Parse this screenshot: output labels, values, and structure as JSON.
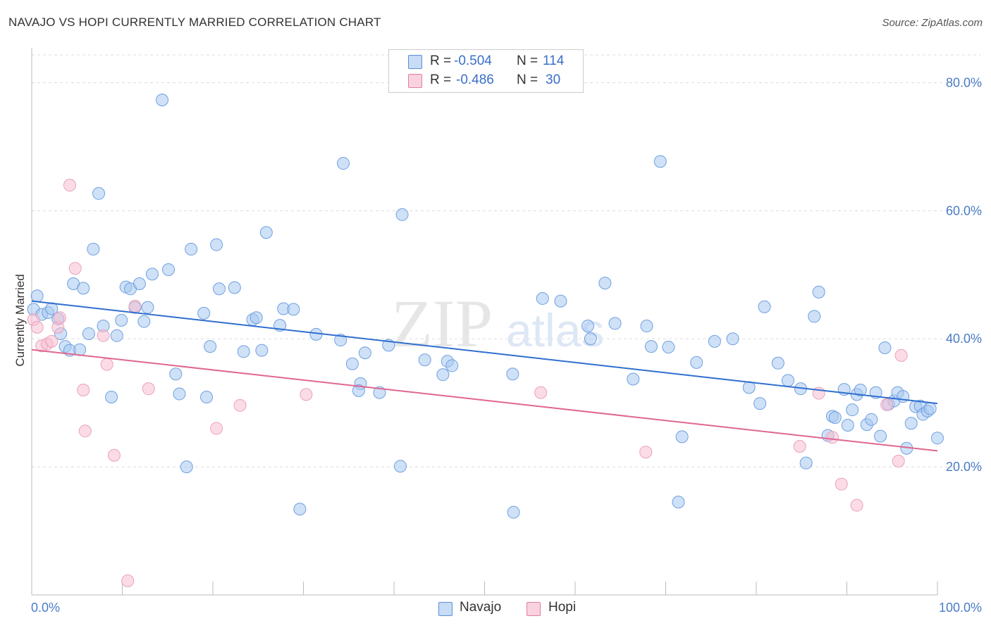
{
  "title": "NAVAJO VS HOPI CURRENTLY MARRIED CORRELATION CHART",
  "source": "Source: ZipAtlas.com",
  "watermark": {
    "zip": "ZIP",
    "atlas": "atlas"
  },
  "legend": {
    "rows": [
      {
        "r_label": "R =",
        "r_value": "-0.504",
        "n_label": "N =",
        "n_value": "114",
        "color": "#a8c8f0",
        "border": "#5b8fd6"
      },
      {
        "r_label": "R =",
        "r_value": "-0.486",
        "n_label": "N =",
        "n_value": "30",
        "color": "#f7bfd1",
        "border": "#e07ea0"
      }
    ]
  },
  "bottom_legend": [
    {
      "label": "Navajo",
      "color": "#a8c8f0",
      "border": "#5b8fd6"
    },
    {
      "label": "Hopi",
      "color": "#f7bfd1",
      "border": "#e07ea0"
    }
  ],
  "chart_data": {
    "type": "scatter",
    "title": "NAVAJO VS HOPI CURRENTLY MARRIED CORRELATION CHART",
    "xlabel": "",
    "ylabel": "Currently Married",
    "xlim": [
      0,
      100
    ],
    "ylim": [
      0,
      85
    ],
    "x_tick_labels": [
      "0.0%",
      "100.0%"
    ],
    "y_ticks": [
      20,
      40,
      60,
      80
    ],
    "y_tick_labels": [
      "20.0%",
      "40.0%",
      "60.0%",
      "80.0%"
    ],
    "grid": true,
    "legend_position": "top-center",
    "series": [
      {
        "name": "Navajo",
        "color": "#6fa0e0",
        "trend": {
          "x": [
            0,
            100
          ],
          "y": [
            45.9,
            29.9
          ]
        },
        "points": [
          [
            0.2,
            44.6
          ],
          [
            0.6,
            46.7
          ],
          [
            1.1,
            43.8
          ],
          [
            1.8,
            44.1
          ],
          [
            2.2,
            44.7
          ],
          [
            2.9,
            43.1
          ],
          [
            3.2,
            40.8
          ],
          [
            3.7,
            38.8
          ],
          [
            4.2,
            38.2
          ],
          [
            4.6,
            48.6
          ],
          [
            5.3,
            38.3
          ],
          [
            5.7,
            47.9
          ],
          [
            6.3,
            40.8
          ],
          [
            6.8,
            54.0
          ],
          [
            7.4,
            62.7
          ],
          [
            7.9,
            42.0
          ],
          [
            8.8,
            30.9
          ],
          [
            9.4,
            40.5
          ],
          [
            9.9,
            42.9
          ],
          [
            10.4,
            48.1
          ],
          [
            10.9,
            47.8
          ],
          [
            11.4,
            44.9
          ],
          [
            11.9,
            48.6
          ],
          [
            12.4,
            42.7
          ],
          [
            12.8,
            44.9
          ],
          [
            13.3,
            50.1
          ],
          [
            14.4,
            77.3
          ],
          [
            15.1,
            50.8
          ],
          [
            15.9,
            34.5
          ],
          [
            16.3,
            31.4
          ],
          [
            17.1,
            20.0
          ],
          [
            17.6,
            54.0
          ],
          [
            19.0,
            44.0
          ],
          [
            19.3,
            30.9
          ],
          [
            19.7,
            38.8
          ],
          [
            20.4,
            54.7
          ],
          [
            20.7,
            47.8
          ],
          [
            22.4,
            48.0
          ],
          [
            23.4,
            38.0
          ],
          [
            24.4,
            43.0
          ],
          [
            24.8,
            43.3
          ],
          [
            25.4,
            38.2
          ],
          [
            25.9,
            56.6
          ],
          [
            27.4,
            42.1
          ],
          [
            27.8,
            44.7
          ],
          [
            28.9,
            44.6
          ],
          [
            29.6,
            13.4
          ],
          [
            31.4,
            40.7
          ],
          [
            34.1,
            39.8
          ],
          [
            34.4,
            67.4
          ],
          [
            35.4,
            36.1
          ],
          [
            36.3,
            33.0
          ],
          [
            36.1,
            31.9
          ],
          [
            36.8,
            37.8
          ],
          [
            38.4,
            31.6
          ],
          [
            39.4,
            39.0
          ],
          [
            40.9,
            59.4
          ],
          [
            40.7,
            20.1
          ],
          [
            43.4,
            36.7
          ],
          [
            45.4,
            34.4
          ],
          [
            45.9,
            36.5
          ],
          [
            46.4,
            35.8
          ],
          [
            53.1,
            34.5
          ],
          [
            53.2,
            12.9
          ],
          [
            56.4,
            46.3
          ],
          [
            58.4,
            45.9
          ],
          [
            61.4,
            42.0
          ],
          [
            61.7,
            40.0
          ],
          [
            63.3,
            48.7
          ],
          [
            64.4,
            42.4
          ],
          [
            66.4,
            33.7
          ],
          [
            67.9,
            42.0
          ],
          [
            68.4,
            38.8
          ],
          [
            69.4,
            67.7
          ],
          [
            70.3,
            38.7
          ],
          [
            71.4,
            14.5
          ],
          [
            71.8,
            24.7
          ],
          [
            73.4,
            36.3
          ],
          [
            75.4,
            39.6
          ],
          [
            77.4,
            40.0
          ],
          [
            79.2,
            32.4
          ],
          [
            80.4,
            29.9
          ],
          [
            80.9,
            45.0
          ],
          [
            82.4,
            36.2
          ],
          [
            83.5,
            33.5
          ],
          [
            84.9,
            32.2
          ],
          [
            85.5,
            20.6
          ],
          [
            86.4,
            43.5
          ],
          [
            86.9,
            47.3
          ],
          [
            87.9,
            24.9
          ],
          [
            88.4,
            27.9
          ],
          [
            88.7,
            27.7
          ],
          [
            89.7,
            32.1
          ],
          [
            90.1,
            26.5
          ],
          [
            90.6,
            28.9
          ],
          [
            91.1,
            31.3
          ],
          [
            91.5,
            32.0
          ],
          [
            92.2,
            26.6
          ],
          [
            92.7,
            27.4
          ],
          [
            93.2,
            31.6
          ],
          [
            93.7,
            24.8
          ],
          [
            94.2,
            38.6
          ],
          [
            94.6,
            29.8
          ],
          [
            95.2,
            30.3
          ],
          [
            95.6,
            31.6
          ],
          [
            96.2,
            31.0
          ],
          [
            96.6,
            22.9
          ],
          [
            97.1,
            26.8
          ],
          [
            97.6,
            29.4
          ],
          [
            98.1,
            29.5
          ],
          [
            98.4,
            28.2
          ],
          [
            98.9,
            28.7
          ],
          [
            99.2,
            29.1
          ],
          [
            100.0,
            24.5
          ]
        ]
      },
      {
        "name": "Hopi",
        "color": "#f0a0bc",
        "trend": {
          "x": [
            0,
            100
          ],
          "y": [
            38.3,
            22.5
          ]
        },
        "points": [
          [
            0.2,
            43.0
          ],
          [
            0.6,
            41.8
          ],
          [
            1.1,
            38.9
          ],
          [
            1.7,
            39.2
          ],
          [
            2.2,
            39.6
          ],
          [
            2.9,
            41.8
          ],
          [
            3.1,
            43.3
          ],
          [
            4.2,
            64.0
          ],
          [
            4.8,
            51.0
          ],
          [
            5.7,
            32.0
          ],
          [
            5.9,
            25.6
          ],
          [
            7.9,
            40.5
          ],
          [
            8.3,
            36.0
          ],
          [
            9.1,
            21.8
          ],
          [
            10.6,
            2.2
          ],
          [
            11.4,
            45.1
          ],
          [
            12.9,
            32.2
          ],
          [
            20.4,
            26.0
          ],
          [
            23.0,
            29.6
          ],
          [
            30.3,
            31.3
          ],
          [
            56.2,
            31.6
          ],
          [
            67.8,
            22.3
          ],
          [
            84.8,
            23.2
          ],
          [
            86.9,
            31.5
          ],
          [
            88.4,
            24.6
          ],
          [
            89.4,
            17.3
          ],
          [
            91.1,
            14.0
          ],
          [
            94.4,
            29.7
          ],
          [
            95.7,
            20.9
          ],
          [
            96.0,
            37.4
          ]
        ]
      }
    ]
  }
}
